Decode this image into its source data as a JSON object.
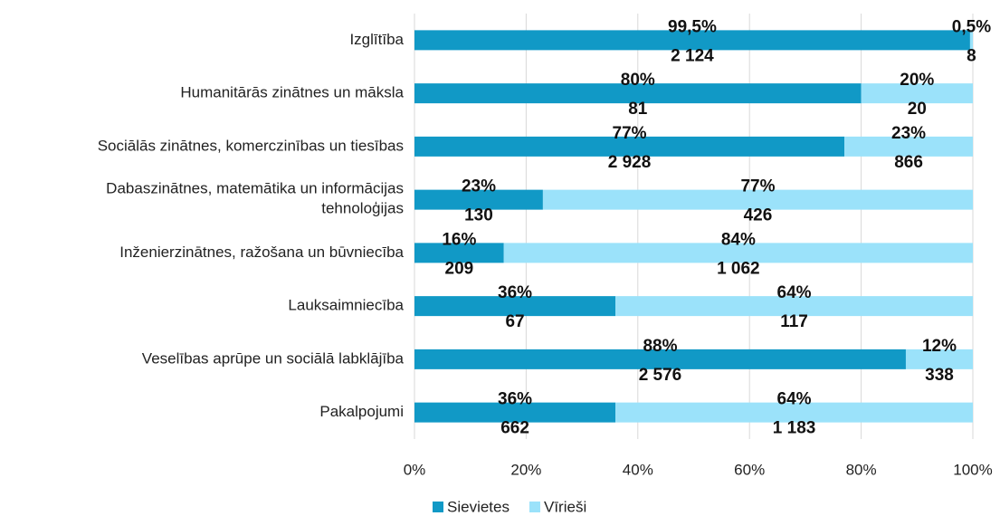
{
  "chart_data": {
    "type": "stacked_barh_100",
    "categories": [
      "Izglītība",
      "Humanitārās zinātnes un māksla",
      "Sociālās zinātnes, komerczinības un tiesības",
      "Dabaszinātnes, matemātika un informācijas\ntehnoloģijas",
      "Inženierzinātnes, ražošana un būvniecība",
      "Lauksaimniecība",
      "Veselības aprūpe un sociālā labklājība",
      "Pakalpojumi"
    ],
    "series": [
      {
        "name": "Sievietes",
        "color": "#1199c6",
        "values": [
          99.5,
          80,
          77,
          23,
          16,
          36,
          88,
          36
        ],
        "value_labels": [
          "99,5%",
          "80%",
          "77%",
          "23%",
          "16%",
          "36%",
          "88%",
          "36%"
        ],
        "counts": [
          2124,
          81,
          2928,
          130,
          209,
          67,
          2576,
          662
        ],
        "count_labels": [
          "2 124",
          "81",
          "2 928",
          "130",
          "209",
          "67",
          "2 576",
          "662"
        ]
      },
      {
        "name": "Vīrieši",
        "color": "#9be2fa",
        "values": [
          0.5,
          20,
          23,
          77,
          84,
          64,
          12,
          64
        ],
        "value_labels": [
          "0,5%",
          "20%",
          "23%",
          "77%",
          "84%",
          "64%",
          "12%",
          "64%"
        ],
        "counts": [
          8,
          20,
          866,
          426,
          1062,
          117,
          338,
          1183
        ],
        "count_labels": [
          "8",
          "20",
          "866",
          "426",
          "1 062",
          "117",
          "338",
          "1 183"
        ]
      }
    ],
    "xlim": [
      0,
      100
    ],
    "xticks": [
      {
        "value": 0,
        "label": "0%"
      },
      {
        "value": 20,
        "label": "20%"
      },
      {
        "value": 40,
        "label": "40%"
      },
      {
        "value": 60,
        "label": "60%"
      },
      {
        "value": 80,
        "label": "80%"
      },
      {
        "value": 100,
        "label": "100%"
      }
    ],
    "grid": true,
    "legend": "bottom"
  }
}
